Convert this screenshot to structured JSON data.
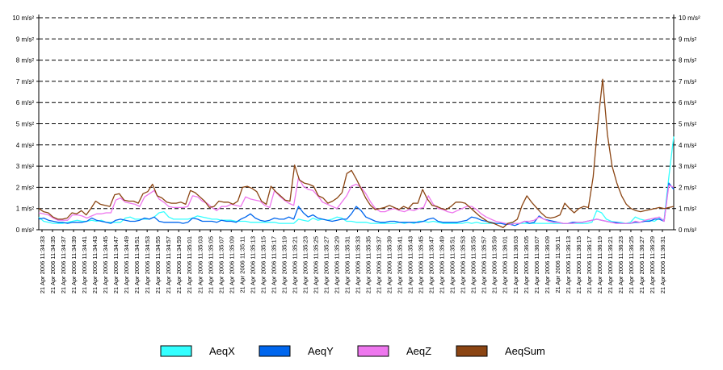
{
  "chart_data": {
    "type": "line",
    "y_unit": "m/s²",
    "ylim": [
      0,
      10
    ],
    "y_ticks": [
      "0 m/s²",
      "1 m/s²",
      "2 m/s²",
      "3 m/s²",
      "4 m/s²",
      "5 m/s²",
      "6 m/s²",
      "7 m/s²",
      "8 m/s²",
      "9 m/s²",
      "10 m/s²"
    ],
    "grid": true,
    "legend_position": "bottom",
    "x_labels": [
      "21 Apr 2006 11:34:33",
      "21 Apr 2006 11:34:35",
      "21 Apr 2006 11:34:37",
      "21 Apr 2006 11:34:39",
      "21 Apr 2006 11:34:41",
      "21 Apr 2006 11:34:43",
      "21 Apr 2006 11:34:45",
      "21 Apr 2006 11:34:47",
      "21 Apr 2006 11:34:49",
      "21 Apr 2006 11:34:51",
      "21 Apr 2006 11:34:53",
      "21 Apr 2006 11:34:55",
      "21 Apr 2006 11:34:57",
      "21 Apr 2006 11:34:59",
      "21 Apr 2006 11:35:01",
      "21 Apr 2006 11:35:03",
      "21 Apr 2006 11:35:05",
      "21 Apr 2006 11:35:07",
      "21 Apr 2006 11:35:09",
      "21 Apr 2006 11:35:11",
      "21 Apr 2006 11:35:13",
      "21 Apr 2006 11:35:15",
      "21 Apr 2006 11:35:17",
      "21 Apr 2006 11:35:19",
      "21 Apr 2006 11:35:21",
      "21 Apr 2006 11:35:23",
      "21 Apr 2006 11:35:25",
      "21 Apr 2006 11:35:27",
      "21 Apr 2006 11:35:29",
      "21 Apr 2006 11:35:31",
      "21 Apr 2006 11:35:33",
      "21 Apr 2006 11:35:35",
      "21 Apr 2006 11:35:37",
      "21 Apr 2006 11:35:39",
      "21 Apr 2006 11:35:41",
      "21 Apr 2006 11:35:43",
      "21 Apr 2006 11:35:45",
      "21 Apr 2006 11:35:47",
      "21 Apr 2006 11:35:49",
      "21 Apr 2006 11:35:51",
      "21 Apr 2006 11:35:53",
      "21 Apr 2006 11:35:55",
      "21 Apr 2006 11:35:57",
      "21 Apr 2006 11:35:59",
      "21 Apr 2006 11:36:01",
      "21 Apr 2006 11:36:03",
      "21 Apr 2006 11:36:05",
      "21 Apr 2006 11:36:07",
      "21 Apr 2006 11:36:09",
      "21 Apr 2006 11:36:11",
      "21 Apr 2006 11:36:13",
      "21 Apr 2006 11:36:15",
      "21 Apr 2006 11:36:17",
      "21 Apr 2006 11:36:19",
      "21 Apr 2006 11:36:21",
      "21 Apr 2006 11:36:23",
      "21 Apr 2006 11:36:25",
      "21 Apr 2006 11:36:27",
      "21 Apr 2006 11:36:29",
      "21 Apr 2006 11:36:31"
    ],
    "series": [
      {
        "name": "AeqX",
        "color": "#33ffff",
        "values": [
          0.6,
          0.4,
          0.35,
          0.3,
          0.3,
          0.3,
          0.35,
          0.4,
          0.45,
          0.4,
          0.4,
          0.45,
          0.4,
          0.45,
          0.35,
          0.35,
          0.35,
          0.35,
          0.55,
          0.6,
          0.5,
          0.5,
          0.5,
          0.5,
          0.6,
          0.8,
          0.85,
          0.6,
          0.5,
          0.5,
          0.5,
          0.5,
          0.55,
          0.65,
          0.6,
          0.55,
          0.5,
          0.5,
          0.45,
          0.45,
          0.45,
          0.4,
          0.4,
          0.4,
          0.35,
          0.35,
          0.35,
          0.35,
          0.35,
          0.35,
          0.3,
          0.3,
          0.3,
          0.3,
          0.5,
          0.45,
          0.4,
          0.55,
          0.45,
          0.5,
          0.45,
          0.5,
          0.6,
          0.55,
          0.4,
          0.4,
          0.35,
          0.35,
          0.35,
          0.3,
          0.3,
          0.3,
          0.3,
          0.3,
          0.3,
          0.35,
          0.3,
          0.35,
          0.3,
          0.4,
          0.4,
          0.35,
          0.4,
          0.35,
          0.3,
          0.3,
          0.3,
          0.3,
          0.3,
          0.35,
          0.3,
          0.35,
          0.3,
          0.3,
          0.3,
          0.3,
          0.3,
          0.3,
          0.3,
          0.3,
          0.3,
          0.3,
          0.3,
          0.3,
          0.3,
          0.3,
          0.3,
          0.3,
          0.3,
          0.3,
          0.3,
          0.3,
          0.3,
          0.3,
          0.3,
          0.35,
          0.9,
          0.8,
          0.5,
          0.4,
          0.35,
          0.35,
          0.3,
          0.35,
          0.6,
          0.5,
          0.45,
          0.45,
          0.4,
          0.55,
          0.45,
          2.5,
          4.4
        ]
      },
      {
        "name": "AeqY",
        "color": "#0066ee",
        "values": [
          0.5,
          0.55,
          0.45,
          0.4,
          0.35,
          0.35,
          0.3,
          0.35,
          0.35,
          0.35,
          0.4,
          0.55,
          0.45,
          0.4,
          0.35,
          0.3,
          0.45,
          0.5,
          0.45,
          0.4,
          0.4,
          0.45,
          0.55,
          0.5,
          0.6,
          0.4,
          0.35,
          0.35,
          0.35,
          0.35,
          0.3,
          0.35,
          0.55,
          0.5,
          0.4,
          0.4,
          0.4,
          0.35,
          0.45,
          0.4,
          0.4,
          0.35,
          0.5,
          0.6,
          0.75,
          0.55,
          0.45,
          0.4,
          0.45,
          0.55,
          0.5,
          0.5,
          0.6,
          0.5,
          1.1,
          0.8,
          0.6,
          0.7,
          0.55,
          0.5,
          0.45,
          0.4,
          0.45,
          0.5,
          0.5,
          0.75,
          1.1,
          0.9,
          0.6,
          0.5,
          0.4,
          0.35,
          0.35,
          0.4,
          0.4,
          0.35,
          0.35,
          0.35,
          0.35,
          0.35,
          0.4,
          0.5,
          0.55,
          0.4,
          0.35,
          0.35,
          0.35,
          0.35,
          0.4,
          0.45,
          0.6,
          0.55,
          0.45,
          0.4,
          0.35,
          0.3,
          0.3,
          0.25,
          0.25,
          0.2,
          0.3,
          0.4,
          0.3,
          0.35,
          0.65,
          0.5,
          0.45,
          0.4,
          0.35,
          0.3,
          0.3,
          0.35,
          0.35,
          0.35,
          0.4,
          0.45,
          0.5,
          0.45,
          0.4,
          0.35,
          0.35,
          0.3,
          0.3,
          0.3,
          0.35,
          0.35,
          0.4,
          0.4,
          0.5,
          0.5,
          0.4,
          2.2,
          1.9
        ]
      },
      {
        "name": "AeqZ",
        "color": "#ee77ee",
        "values": [
          0.8,
          0.75,
          0.7,
          0.55,
          0.45,
          0.45,
          0.45,
          0.7,
          0.7,
          0.65,
          0.55,
          0.65,
          0.75,
          0.75,
          0.8,
          0.8,
          1.4,
          1.5,
          1.3,
          1.25,
          1.2,
          1.1,
          1.55,
          1.7,
          1.85,
          1.45,
          1.3,
          1.1,
          1.05,
          1.05,
          1.05,
          1.1,
          1.6,
          1.55,
          1.35,
          1.25,
          1.05,
          0.9,
          1.1,
          1.1,
          1.2,
          1.15,
          1.1,
          1.55,
          1.45,
          1.4,
          1.35,
          1.15,
          1.05,
          1.85,
          1.6,
          1.4,
          1.25,
          1.15,
          2.45,
          2.05,
          1.9,
          1.85,
          1.6,
          1.3,
          1.2,
          1.1,
          1.0,
          1.3,
          1.6,
          2.05,
          2.15,
          2.0,
          1.7,
          1.3,
          1.0,
          0.85,
          0.85,
          0.95,
          1.0,
          0.9,
          0.85,
          0.95,
          0.9,
          1.0,
          1.05,
          1.6,
          1.2,
          1.0,
          0.95,
          0.85,
          0.8,
          0.9,
          1.0,
          1.1,
          1.1,
          0.95,
          0.75,
          0.6,
          0.5,
          0.4,
          0.35,
          0.3,
          0.25,
          0.3,
          0.3,
          0.4,
          0.4,
          0.45,
          0.6,
          0.5,
          0.4,
          0.35,
          0.35,
          0.3,
          0.3,
          0.3,
          0.35,
          0.35,
          0.4,
          0.45,
          0.5,
          0.45,
          0.4,
          0.35,
          0.3,
          0.3,
          0.3,
          0.3,
          0.4,
          0.35,
          0.45,
          0.5,
          0.55,
          0.6,
          0.4,
          2.1,
          2.0
        ]
      },
      {
        "name": "AeqSum",
        "color": "#8b4513",
        "values": [
          1.0,
          0.85,
          0.8,
          0.6,
          0.5,
          0.5,
          0.55,
          0.8,
          0.75,
          0.9,
          0.7,
          1.0,
          1.35,
          1.2,
          1.15,
          1.1,
          1.65,
          1.7,
          1.4,
          1.35,
          1.35,
          1.25,
          1.7,
          1.8,
          2.15,
          1.6,
          1.5,
          1.3,
          1.25,
          1.25,
          1.3,
          1.2,
          1.85,
          1.75,
          1.55,
          1.35,
          1.05,
          1.1,
          1.35,
          1.3,
          1.3,
          1.2,
          1.35,
          2.0,
          2.05,
          1.95,
          1.8,
          1.35,
          1.2,
          2.05,
          1.8,
          1.6,
          1.4,
          1.35,
          3.05,
          2.35,
          2.2,
          2.15,
          2.05,
          1.6,
          1.5,
          1.25,
          1.35,
          1.5,
          1.75,
          2.65,
          2.8,
          2.4,
          1.95,
          1.5,
          1.15,
          0.95,
          1.0,
          1.05,
          1.15,
          1.05,
          0.95,
          1.1,
          1.0,
          1.25,
          1.25,
          1.9,
          1.45,
          1.15,
          1.1,
          1.0,
          0.95,
          1.1,
          1.3,
          1.3,
          1.25,
          1.05,
          0.85,
          0.65,
          0.5,
          0.35,
          0.3,
          0.2,
          0.1,
          0.3,
          0.35,
          0.5,
          1.15,
          1.6,
          1.3,
          1.05,
          0.8,
          0.6,
          0.55,
          0.6,
          0.7,
          1.25,
          1.0,
          0.8,
          1.0,
          1.1,
          1.05,
          2.5,
          5.0,
          7.1,
          4.5,
          3.0,
          2.2,
          1.6,
          1.2,
          1.0,
          0.9,
          0.85,
          0.9,
          0.95,
          1.0,
          1.05,
          1.0,
          1.05,
          1.1
        ]
      }
    ]
  }
}
